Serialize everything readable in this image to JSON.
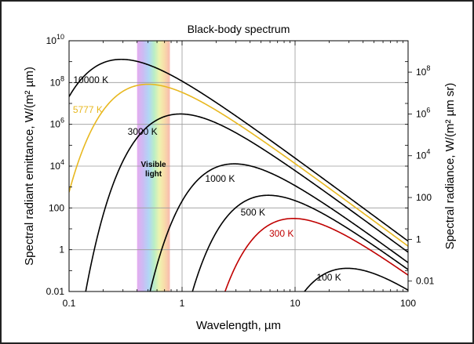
{
  "chart_data": {
    "type": "line",
    "title": "Black-body spectrum",
    "xlabel": "Wavelength, µm",
    "ylabel": "Spectral radiant emittance, W/(m² µm)",
    "y2label": "Spectral radiance, W/(m² µm sr)",
    "xscale": "log",
    "yscale": "log",
    "xlim": [
      0.1,
      100
    ],
    "ylim": [
      0.01,
      10000000000
    ],
    "grid": true,
    "legend": "none",
    "x_ticks": [
      "0.1",
      "1",
      "10",
      "100"
    ],
    "y_ticks": [
      {
        "value": 0.01,
        "label": "0.01"
      },
      {
        "value": 1,
        "label": "1"
      },
      {
        "value": 100,
        "label": "100"
      },
      {
        "value": 10000,
        "base": "10",
        "exp": "4"
      },
      {
        "value": 1000000,
        "base": "10",
        "exp": "6"
      },
      {
        "value": 100000000,
        "base": "10",
        "exp": "8"
      },
      {
        "value": 10000000000,
        "base": "10",
        "exp": "10"
      }
    ],
    "y2_ticks": [
      {
        "label": "0.01"
      },
      {
        "label": "1"
      },
      {
        "label": "100"
      },
      {
        "base": "10",
        "exp": "4"
      },
      {
        "base": "10",
        "exp": "6"
      },
      {
        "base": "10",
        "exp": "8"
      }
    ],
    "visible_band": {
      "label_line1": "Visible",
      "label_line2": "light",
      "range": [
        0.4,
        0.78
      ]
    },
    "series": [
      {
        "name": "10000 K",
        "temperature": 10000,
        "color": "#000000"
      },
      {
        "name": "5777 K",
        "temperature": 5777,
        "color": "#e8b820"
      },
      {
        "name": "3000 K",
        "temperature": 3000,
        "color": "#000000"
      },
      {
        "name": "1000 K",
        "temperature": 1000,
        "color": "#000000"
      },
      {
        "name": "500 K",
        "temperature": 500,
        "color": "#000000"
      },
      {
        "name": "300 K",
        "temperature": 300,
        "color": "#c00000"
      },
      {
        "name": "100 K",
        "temperature": 100,
        "color": "#000000"
      }
    ]
  }
}
